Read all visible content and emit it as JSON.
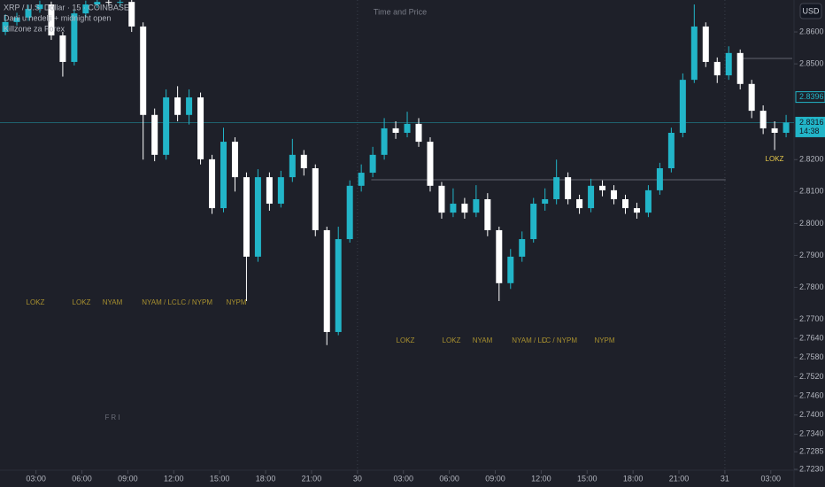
{
  "chart_data": {
    "type": "candlestick",
    "title": "XRP / U.S. Dollar · 15 · COINBASE",
    "indicators": [
      "Dani u nedelji + midnight open",
      "Killzone za Forex"
    ],
    "center_label": "Time and Price",
    "currency": "USD",
    "up_color": "#22b5c8",
    "down_color": "#ffffff",
    "x": [
      1,
      1.75,
      2.5,
      3.25,
      4,
      4.75,
      5.5,
      6.25,
      7,
      7.75,
      8.5,
      9.25,
      10,
      10.75,
      11.5,
      12.25,
      13,
      13.75,
      14.5,
      15.25,
      16,
      16.75,
      17.5,
      18.25,
      19,
      19.75,
      20.5,
      21.25,
      22,
      22.75,
      23.5,
      24.25,
      25,
      25.75,
      26.5,
      27.25,
      28,
      28.75,
      29.5,
      30.25,
      31,
      31.75,
      32.5,
      33.25,
      34,
      34.75,
      35.5,
      36.25,
      37,
      37.75,
      38.5,
      39.25,
      40,
      40.75,
      41.5,
      42.25,
      43,
      43.75,
      44.5,
      45.25,
      46,
      46.75,
      47.5,
      48.25,
      49,
      49.75,
      50.5,
      51.25,
      52
    ],
    "open": [
      2.86,
      2.8631,
      2.8645,
      2.8672,
      2.8686,
      2.8589,
      2.8506,
      2.8658,
      2.8686,
      2.8694,
      2.8692,
      2.8694,
      2.8617,
      2.834,
      2.8215,
      2.8395,
      2.834,
      2.8395,
      2.8201,
      2.8048,
      2.8256,
      2.8145,
      2.7896,
      2.8145,
      2.8062,
      2.8145,
      2.8215,
      2.8173,
      2.7979,
      2.766,
      2.7951,
      2.8118,
      2.8159,
      2.8215,
      2.8298,
      2.8284,
      2.8312,
      2.8256,
      2.8118,
      2.8034,
      2.8062,
      2.8034,
      2.8076,
      2.7979,
      2.7813,
      2.7896,
      2.7951,
      2.8062,
      2.8076,
      2.8145,
      2.8076,
      2.8048,
      2.8118,
      2.8104,
      2.8076,
      2.8048,
      2.8034,
      2.8104,
      2.8173,
      2.8284,
      2.845,
      2.8617,
      2.8506,
      2.8464,
      2.8534,
      2.8437,
      2.8353,
      2.8298,
      2.8284
    ],
    "high": [
      2.8655,
      2.866,
      2.8685,
      2.8698,
      2.8695,
      2.86,
      2.867,
      2.8698,
      2.871,
      2.8715,
      2.872,
      2.8705,
      2.863,
      2.836,
      2.842,
      2.843,
      2.842,
      2.841,
      2.8215,
      2.83,
      2.827,
      2.816,
      2.817,
      2.816,
      2.8165,
      2.8265,
      2.823,
      2.8185,
      2.799,
      2.799,
      2.8135,
      2.8185,
      2.824,
      2.833,
      2.832,
      2.835,
      2.833,
      2.827,
      2.813,
      2.811,
      2.808,
      2.812,
      2.8095,
      2.799,
      2.792,
      2.7975,
      2.808,
      2.811,
      2.82,
      2.816,
      2.809,
      2.814,
      2.8135,
      2.812,
      2.809,
      2.8065,
      2.812,
      2.819,
      2.83,
      2.847,
      2.8686,
      2.863,
      2.852,
      2.8555,
      2.8545,
      2.845,
      2.837,
      2.832,
      2.834
    ],
    "low": [
      2.859,
      2.862,
      2.8635,
      2.866,
      2.8575,
      2.846,
      2.8495,
      2.8645,
      2.8675,
      2.868,
      2.868,
      2.86,
      2.82,
      2.8195,
      2.82,
      2.832,
      2.831,
      2.8185,
      2.803,
      2.8035,
      2.81,
      2.7757,
      2.788,
      2.804,
      2.805,
      2.813,
      2.815,
      2.796,
      2.7619,
      2.765,
      2.794,
      2.81,
      2.8145,
      2.82,
      2.8265,
      2.827,
      2.824,
      2.81,
      2.8015,
      2.802,
      2.8015,
      2.802,
      2.796,
      2.7757,
      2.7795,
      2.788,
      2.794,
      2.804,
      2.806,
      2.806,
      2.803,
      2.8035,
      2.8085,
      2.806,
      2.803,
      2.8015,
      2.802,
      2.809,
      2.816,
      2.827,
      2.844,
      2.849,
      2.844,
      2.845,
      2.842,
      2.833,
      2.828,
      2.823,
      2.827
    ],
    "close": [
      2.8631,
      2.8645,
      2.8672,
      2.8686,
      2.8589,
      2.8506,
      2.8658,
      2.8686,
      2.8694,
      2.8692,
      2.8694,
      2.8617,
      2.834,
      2.8215,
      2.8395,
      2.834,
      2.8395,
      2.8201,
      2.8048,
      2.8256,
      2.8145,
      2.7896,
      2.8145,
      2.8062,
      2.8145,
      2.8215,
      2.8173,
      2.7979,
      2.766,
      2.7951,
      2.8118,
      2.8159,
      2.8215,
      2.8298,
      2.8284,
      2.8312,
      2.8256,
      2.8118,
      2.8034,
      2.8062,
      2.8034,
      2.8076,
      2.7979,
      2.7813,
      2.7896,
      2.7951,
      2.8062,
      2.8076,
      2.8145,
      2.8076,
      2.8048,
      2.8118,
      2.8104,
      2.8076,
      2.8048,
      2.8034,
      2.8104,
      2.8173,
      2.8284,
      2.845,
      2.8617,
      2.8506,
      2.8464,
      2.8534,
      2.8437,
      2.8353,
      2.8298,
      2.8284,
      2.8316
    ],
    "xlim": [
      0.65,
      52.4
    ],
    "ylim": [
      2.723,
      2.87
    ],
    "xticks": [
      {
        "value": 3,
        "label": "03:00"
      },
      {
        "value": 6,
        "label": "06:00"
      },
      {
        "value": 9,
        "label": "09:00"
      },
      {
        "value": 12,
        "label": "12:00"
      },
      {
        "value": 15,
        "label": "15:00"
      },
      {
        "value": 18,
        "label": "18:00"
      },
      {
        "value": 21,
        "label": "21:00"
      },
      {
        "value": 24,
        "label": "30"
      },
      {
        "value": 27,
        "label": "03:00"
      },
      {
        "value": 30,
        "label": "06:00"
      },
      {
        "value": 33,
        "label": "09:00"
      },
      {
        "value": 36,
        "label": "12:00"
      },
      {
        "value": 39,
        "label": "15:00"
      },
      {
        "value": 42,
        "label": "18:00"
      },
      {
        "value": 45,
        "label": "21:00"
      },
      {
        "value": 48,
        "label": "31"
      },
      {
        "value": 51,
        "label": "03:00"
      }
    ],
    "yticks": [
      {
        "value": 2.86,
        "label": "2.8600"
      },
      {
        "value": 2.85,
        "label": "2.8500"
      },
      {
        "value": 2.82,
        "label": "2.8200"
      },
      {
        "value": 2.81,
        "label": "2.8100"
      },
      {
        "value": 2.8,
        "label": "2.8000"
      },
      {
        "value": 2.79,
        "label": "2.7900"
      },
      {
        "value": 2.78,
        "label": "2.7800"
      },
      {
        "value": 2.77,
        "label": "2.7700"
      },
      {
        "value": 2.764,
        "label": "2.7640"
      },
      {
        "value": 2.758,
        "label": "2.7580"
      },
      {
        "value": 2.752,
        "label": "2.7520"
      },
      {
        "value": 2.746,
        "label": "2.7460"
      },
      {
        "value": 2.74,
        "label": "2.7400"
      },
      {
        "value": 2.734,
        "label": "2.7340"
      },
      {
        "value": 2.7285,
        "label": "2.7285"
      },
      {
        "value": 2.723,
        "label": "2.7230"
      }
    ],
    "price_tags": [
      {
        "value": 2.8396,
        "label": "2.8396"
      },
      {
        "value": 2.8316,
        "label": "2.8316"
      }
    ],
    "countdown": "14:38",
    "levels": [
      {
        "value": 2.8517,
        "from": 48.9,
        "to": 52.4
      },
      {
        "value": 2.8137,
        "from": 24.9,
        "to": 48.05
      }
    ],
    "annotations": [
      "LOKZ",
      "LOKZ",
      "NYAM",
      "NYAM / LC",
      "LC / NYPM",
      "NYPM",
      "LOKZ",
      "LOKZ",
      "NYAM",
      "NYAM / LC",
      "LC / NYPM",
      "NYPM",
      "LOKZ",
      "FRI"
    ]
  }
}
